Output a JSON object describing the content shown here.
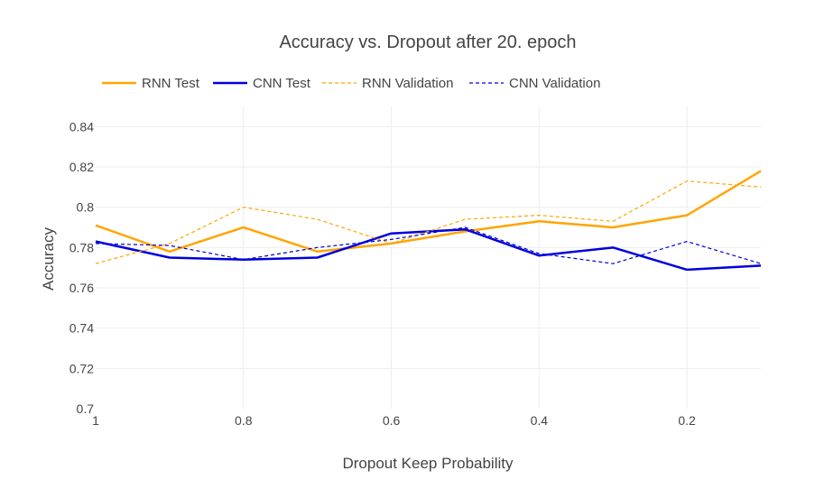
{
  "chart_data": {
    "type": "line",
    "title": "Accuracy vs. Dropout after 20. epoch",
    "xlabel": "Dropout Keep Probability",
    "ylabel": "Accuracy",
    "xlim": [
      1,
      0.1
    ],
    "ylim": [
      0.7,
      0.85
    ],
    "x_reversed": true,
    "grid": true,
    "legend_position": "top-left",
    "x": [
      1,
      0.9,
      0.8,
      0.7,
      0.6,
      0.5,
      0.4,
      0.3,
      0.2,
      0.1
    ],
    "x_ticks": [
      {
        "value": 1,
        "label": "1"
      },
      {
        "value": 0.8,
        "label": "0.8"
      },
      {
        "value": 0.6,
        "label": "0.6"
      },
      {
        "value": 0.4,
        "label": "0.4"
      },
      {
        "value": 0.2,
        "label": "0.2"
      }
    ],
    "y_ticks": [
      {
        "value": 0.7,
        "label": "0.7"
      },
      {
        "value": 0.72,
        "label": "0.72"
      },
      {
        "value": 0.74,
        "label": "0.74"
      },
      {
        "value": 0.76,
        "label": "0.76"
      },
      {
        "value": 0.78,
        "label": "0.78"
      },
      {
        "value": 0.8,
        "label": "0.8"
      },
      {
        "value": 0.82,
        "label": "0.82"
      },
      {
        "value": 0.84,
        "label": "0.84"
      }
    ],
    "series": [
      {
        "name": "RNN Test",
        "color": "#FFA500",
        "dash": "solid",
        "values": [
          0.791,
          0.778,
          0.79,
          0.778,
          0.782,
          0.788,
          0.793,
          0.79,
          0.796,
          0.818
        ]
      },
      {
        "name": "CNN Test",
        "color": "#0000DD",
        "dash": "solid",
        "values": [
          0.783,
          0.775,
          0.774,
          0.775,
          0.787,
          0.789,
          0.776,
          0.78,
          0.769,
          0.771
        ]
      },
      {
        "name": "RNN Validation",
        "color": "#FFA500",
        "dash": "dashed",
        "values": [
          0.772,
          0.782,
          0.8,
          0.794,
          0.782,
          0.794,
          0.796,
          0.793,
          0.813,
          0.81
        ]
      },
      {
        "name": "CNN Validation",
        "color": "#0000DD",
        "dash": "dashed",
        "values": [
          0.782,
          0.781,
          0.774,
          0.78,
          0.784,
          0.79,
          0.777,
          0.772,
          0.783,
          0.772
        ]
      }
    ]
  }
}
